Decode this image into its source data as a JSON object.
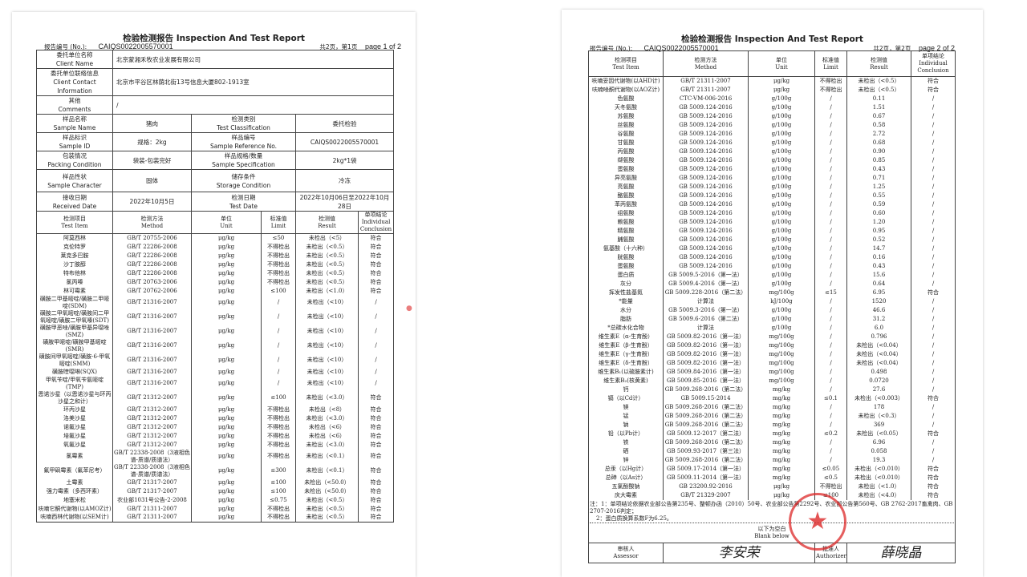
{
  "report_title": "检验检测报告 Inspection And Test Report",
  "report_no_label": "报告编号 (No.):",
  "report_no": "CAIQS0022005570001",
  "page1": {
    "page_cn": "共2页，第1页",
    "page_en": "page 1 of 2",
    "info": {
      "client_name_label": [
        "委托单位名称",
        "Client Name"
      ],
      "client_name": "北京蒙湘禾牧农业发展有限公司",
      "contact_label": [
        "委托单位联络信息",
        "Client Contact Information"
      ],
      "contact": "北京市平谷区林荫北街13号信息大厦802-1913室",
      "comments_label": [
        "其他",
        "Comments"
      ],
      "comments": "/",
      "sample_name_label": [
        "样品名称",
        "Sample Name"
      ],
      "sample_name": "猪肉",
      "test_class_label": [
        "检测类别",
        "Test Classification"
      ],
      "test_class": "委托检验",
      "sample_id_label": [
        "样品标识",
        "Sample ID"
      ],
      "sample_id": "规格：2kg",
      "sample_ref_label": [
        "样品编号",
        "Sample Reference No."
      ],
      "sample_ref": "CAIQS0022005570001",
      "packing_label": [
        "包装情况",
        "Packing Condition"
      ],
      "packing": "袋装-包装完好",
      "spec_label": [
        "样品规格/数量",
        "Sample Specification"
      ],
      "spec": "2kg*1袋",
      "character_label": [
        "样品性状",
        "Sample Character"
      ],
      "character": "固体",
      "storage_label": [
        "储存条件",
        "Storage Condition"
      ],
      "storage": "冷冻",
      "received_label": [
        "接收日期",
        "Received Date"
      ],
      "received": "2022年10月5日",
      "test_date_label": [
        "检测日期",
        "Test Date"
      ],
      "test_date": "2022年10月06日至2022年10月28日"
    },
    "rows": [
      [
        "阿莫西林",
        "GB/T 20755-2006",
        "μg/kg",
        "≤50",
        "未检出（<5）",
        "符合"
      ],
      [
        "克伦特罗",
        "GB/T 22286-2008",
        "μg/kg",
        "不得检出",
        "未检出（<0.5）",
        "符合"
      ],
      [
        "莱克多巴胺",
        "GB/T 22286-2008",
        "μg/kg",
        "不得检出",
        "未检出（<0.5）",
        "符合"
      ],
      [
        "沙丁胺醇",
        "GB/T 22286-2008",
        "μg/kg",
        "不得检出",
        "未检出（<0.5）",
        "符合"
      ],
      [
        "特布他林",
        "GB/T 22286-2008",
        "μg/kg",
        "不得检出",
        "未检出（<0.5）",
        "符合"
      ],
      [
        "氯丙嗪",
        "GB/T 20763-2006",
        "μg/kg",
        "不得检出",
        "未检出（<0.5）",
        "符合"
      ],
      [
        "林可霉素",
        "GB/T 20762-2006",
        "μg/kg",
        "≤100",
        "未检出（<1.0）",
        "符合"
      ],
      [
        "磺胺二甲基嘧啶/磺胺二甲嘧啶(SDM)",
        "GB/T 21316-2007",
        "μg/kg",
        "/",
        "未检出（<10）",
        "/"
      ],
      [
        "磺胺二甲氧嘧啶/磺胺间二甲氧嘧啶/磺胺二甲氧嗪(SDT)",
        "GB/T 21316-2007",
        "μg/kg",
        "/",
        "未检出（<10）",
        "/"
      ],
      [
        "磺胺甲恶唑/磺胺甲基异噁唑(SMZ)",
        "GB/T 21316-2007",
        "μg/kg",
        "/",
        "未检出（<10）",
        "/"
      ],
      [
        "磺胺甲嘧啶/磺胺甲基嘧啶(SMR)",
        "GB/T 21316-2007",
        "μg/kg",
        "/",
        "未检出（<10）",
        "/"
      ],
      [
        "磺胺间甲氧嘧啶/磺胺-6-甲氧嘧啶(SMM)",
        "GB/T 21316-2007",
        "μg/kg",
        "/",
        "未检出（<10）",
        "/"
      ],
      [
        "磺胺喹噁啉(SQX)",
        "GB/T 21316-2007",
        "μg/kg",
        "/",
        "未检出（<10）",
        "/"
      ],
      [
        "甲氧苄啶/甲氧苄氨嘧啶(TMP)",
        "GB/T 21316-2007",
        "μg/kg",
        "/",
        "未检出（<10）",
        "/"
      ],
      [
        "恩诺沙星（以恩诺沙星与环丙沙星之和计）",
        "GB/T 21312-2007",
        "μg/kg",
        "≤100",
        "未检出（<3.0）",
        "符合"
      ],
      [
        "环丙沙星",
        "GB/T 21312-2007",
        "μg/kg",
        "不得检出",
        "未检出（<8）",
        "符合"
      ],
      [
        "洛美沙星",
        "GB/T 21312-2007",
        "μg/kg",
        "不得检出",
        "未检出（<3.0）",
        "符合"
      ],
      [
        "诺氟沙星",
        "GB/T 21312-2007",
        "μg/kg",
        "不得检出",
        "未检出（<6）",
        "符合"
      ],
      [
        "培氟沙星",
        "GB/T 21312-2007",
        "μg/kg",
        "不得检出",
        "未检出（<6）",
        "符合"
      ],
      [
        "氧氟沙星",
        "GB/T 21312-2007",
        "μg/kg",
        "不得检出",
        "未检出（<3.0）",
        "符合"
      ],
      [
        "氯霉素",
        "GB/T 22338-2008（3液相色谱-质谱/质谱法）",
        "μg/kg",
        "不得检出",
        "未检出（<0.1）",
        "符合"
      ],
      [
        "氟甲砜霉素（氟苯尼考）",
        "GB/T 22338-2008（3液相色谱-质谱/质谱法）",
        "μg/kg",
        "≤300",
        "未检出（<0.1）",
        "符合"
      ],
      [
        "土霉素",
        "GB/T 21317-2007",
        "μg/kg",
        "≤100",
        "未检出（<50.0）",
        "符合"
      ],
      [
        "强力霉素（多西环素）",
        "GB/T 21317-2007",
        "μg/kg",
        "≤100",
        "未检出（<50.0）",
        "符合"
      ],
      [
        "地塞米松",
        "农业部1031号公告-2-2008",
        "μg/kg",
        "≤0.75",
        "未检出（<0.5）",
        "符合"
      ],
      [
        "呋喃它酮代谢物(以AMOZ计)",
        "GB/T 21311-2007",
        "μg/kg",
        "不得检出",
        "未检出（<0.5）",
        "符合"
      ],
      [
        "呋喃西林代谢物(以SEM计)",
        "GB/T 21311-2007",
        "μg/kg",
        "不得检出",
        "未检出（<0.5）",
        "符合"
      ]
    ]
  },
  "columns": [
    [
      "检测项目",
      "Test Item"
    ],
    [
      "检测方法",
      "Method"
    ],
    [
      "单位",
      "Unit"
    ],
    [
      "标准值",
      "Limit"
    ],
    [
      "检测值",
      "Result"
    ],
    [
      "单项结论",
      "Individual Conclusion"
    ]
  ],
  "page2": {
    "page_cn": "共2页，第2页",
    "page_en": "page 2 of 2",
    "rows": [
      [
        "呋喃妥因代谢物(以AHD计)",
        "GB/T 21311-2007",
        "μg/kg",
        "不得检出",
        "未检出（<0.5）",
        "符合"
      ],
      [
        "呋喃唑酮代谢物(以AOZ计)",
        "GB/T 21311-2007",
        "μg/kg",
        "不得检出",
        "未检出（<0.5）",
        "符合"
      ],
      [
        "色氨酸",
        "CTC-VM-006-2016",
        "g/100g",
        "/",
        "0.11",
        "/"
      ],
      [
        "天冬氨酸",
        "GB 5009.124-2016",
        "g/100g",
        "/",
        "1.51",
        "/"
      ],
      [
        "苏氨酸",
        "GB 5009.124-2016",
        "g/100g",
        "/",
        "0.67",
        "/"
      ],
      [
        "丝氨酸",
        "GB 5009.124-2016",
        "g/100g",
        "/",
        "0.58",
        "/"
      ],
      [
        "谷氨酸",
        "GB 5009.124-2016",
        "g/100g",
        "/",
        "2.72",
        "/"
      ],
      [
        "甘氨酸",
        "GB 5009.124-2016",
        "g/100g",
        "/",
        "0.68",
        "/"
      ],
      [
        "丙氨酸",
        "GB 5009.124-2016",
        "g/100g",
        "/",
        "0.90",
        "/"
      ],
      [
        "缬氨酸",
        "GB 5009.124-2016",
        "g/100g",
        "/",
        "0.85",
        "/"
      ],
      [
        "蛋氨酸",
        "GB 5009.124-2016",
        "g/100g",
        "/",
        "0.43",
        "/"
      ],
      [
        "异亮氨酸",
        "GB 5009.124-2016",
        "g/100g",
        "/",
        "0.71",
        "/"
      ],
      [
        "亮氨酸",
        "GB 5009.124-2016",
        "g/100g",
        "/",
        "1.25",
        "/"
      ],
      [
        "酪氨酸",
        "GB 5009.124-2016",
        "g/100g",
        "/",
        "0.55",
        "/"
      ],
      [
        "苯丙氨酸",
        "GB 5009.124-2016",
        "g/100g",
        "/",
        "0.59",
        "/"
      ],
      [
        "组氨酸",
        "GB 5009.124-2016",
        "g/100g",
        "/",
        "0.60",
        "/"
      ],
      [
        "赖氨酸",
        "GB 5009.124-2016",
        "g/100g",
        "/",
        "1.20",
        "/"
      ],
      [
        "精氨酸",
        "GB 5009.124-2016",
        "g/100g",
        "/",
        "0.95",
        "/"
      ],
      [
        "脯氨酸",
        "GB 5009.124-2016",
        "g/100g",
        "/",
        "0.52",
        "/"
      ],
      [
        "氨基酸（十六种）",
        "GB 5009.124-2016",
        "g/100g",
        "/",
        "14.7",
        "/"
      ],
      [
        "胱氨酸",
        "GB 5009.124-2016",
        "g/100g",
        "/",
        "0.16",
        "/"
      ],
      [
        "蛋氨酸",
        "GB 5009.124-2016",
        "g/100g",
        "/",
        "0.43",
        "/"
      ],
      [
        "蛋白质",
        "GB 5009.5-2016（第一法）",
        "g/100g",
        "/",
        "15.6",
        "/"
      ],
      [
        "灰分",
        "GB 5009.4-2016（第一法）",
        "g/100g",
        "/",
        "0.64",
        "/"
      ],
      [
        "挥发性盐基氮",
        "GB 5009.228-2016（第二法）",
        "mg/100g",
        "≤15",
        "6.95",
        "符合"
      ],
      [
        "*能量",
        "计算法",
        "kJ/100g",
        "/",
        "1520",
        "/"
      ],
      [
        "水分",
        "GB 5009.3-2016（第一法）",
        "g/100g",
        "/",
        "46.6",
        "/"
      ],
      [
        "脂肪",
        "GB 5009.6-2016（第二法）",
        "g/100g",
        "/",
        "31.2",
        "/"
      ],
      [
        "*总碳水化合物",
        "计算法",
        "g/100g",
        "/",
        "6.0",
        "/"
      ],
      [
        "维生素E（α-生育酚）",
        "GB 5009.82-2016（第一法）",
        "mg/100g",
        "/",
        "0.796",
        "/"
      ],
      [
        "维生素E（β-生育酚）",
        "GB 5009.82-2016（第一法）",
        "mg/100g",
        "/",
        "未检出（<0.04）",
        "/"
      ],
      [
        "维生素E（γ-生育酚）",
        "GB 5009.82-2016（第一法）",
        "mg/100g",
        "/",
        "未检出（<0.04）",
        "/"
      ],
      [
        "维生素E（δ-生育酚）",
        "GB 5009.82-2016（第一法）",
        "mg/100g",
        "/",
        "未检出（<0.04）",
        "/"
      ],
      [
        "维生素B₁(以硫胺素计)",
        "GB 5009.84-2016（第一法）",
        "mg/100g",
        "/",
        "0.498",
        "/"
      ],
      [
        "维生素B₂(核黄素)",
        "GB 5009.85-2016（第一法）",
        "mg/100g",
        "/",
        "0.0720",
        "/"
      ],
      [
        "钙",
        "GB 5009.268-2016（第二法）",
        "mg/kg",
        "/",
        "27.6",
        "/"
      ],
      [
        "镉（以Cd计）",
        "GB 5009.15-2014",
        "mg/kg",
        "≤0.1",
        "未检出（<0.003）",
        "符合"
      ],
      [
        "镁",
        "GB 5009.268-2016（第二法）",
        "mg/kg",
        "/",
        "178",
        "/"
      ],
      [
        "锰",
        "GB 5009.268-2016（第二法）",
        "mg/kg",
        "/",
        "未检出（<0.3）",
        "/"
      ],
      [
        "钠",
        "GB 5009.268-2016（第二法）",
        "mg/kg",
        "/",
        "369",
        "/"
      ],
      [
        "铅（以Pb计）",
        "GB 5009.12-2017（第二法）",
        "mg/kg",
        "≤0.2",
        "未检出（<0.05）",
        "符合"
      ],
      [
        "铁",
        "GB 5009.268-2016（第二法）",
        "mg/kg",
        "/",
        "6.96",
        "/"
      ],
      [
        "硒",
        "GB 5009.93-2017（第三法）",
        "mg/kg",
        "/",
        "0.058",
        "/"
      ],
      [
        "锌",
        "GB 5009.268-2016（第二法）",
        "mg/kg",
        "/",
        "19.3",
        "/"
      ],
      [
        "总汞（以Hg计）",
        "GB 5009.17-2014（第一法）",
        "mg/kg",
        "≤0.05",
        "未检出（<0.010）",
        "符合"
      ],
      [
        "总砷（以As计）",
        "GB 5009.11-2014（第一法）",
        "mg/kg",
        "≤0.5",
        "未检出（<0.010）",
        "符合"
      ],
      [
        "五氯酚酸钠",
        "GB 23200.92-2016",
        "μg/kg",
        "不得检出",
        "未检出（<1.0）",
        "符合"
      ],
      [
        "庆大霉素",
        "GB/T 21329-2007",
        "μg/kg",
        "≤100",
        "未检出（<4.0）",
        "符合"
      ]
    ],
    "note1": "注：1：单项结论依据农业部公告第235号、整顿办函（2010）50号、农业部公告第2292号、农业部公告第560号、GB 2762-2017畜禽肉、GB 2707-2016判定；",
    "note2": "2：蛋白质换算系数F为6.25。",
    "blank_cn": "以下为空白",
    "blank_en": "Blank below",
    "assessor_label": [
      "审核人",
      "Assessor"
    ],
    "assessor_sig": "李安荣",
    "authorizer_label": [
      "批准人",
      "Authorizer"
    ],
    "authorizer_sig": "薛晓晶"
  },
  "colors": {
    "stamp": "#dc2828",
    "paper": "#ffffff",
    "ink": "#222222"
  }
}
